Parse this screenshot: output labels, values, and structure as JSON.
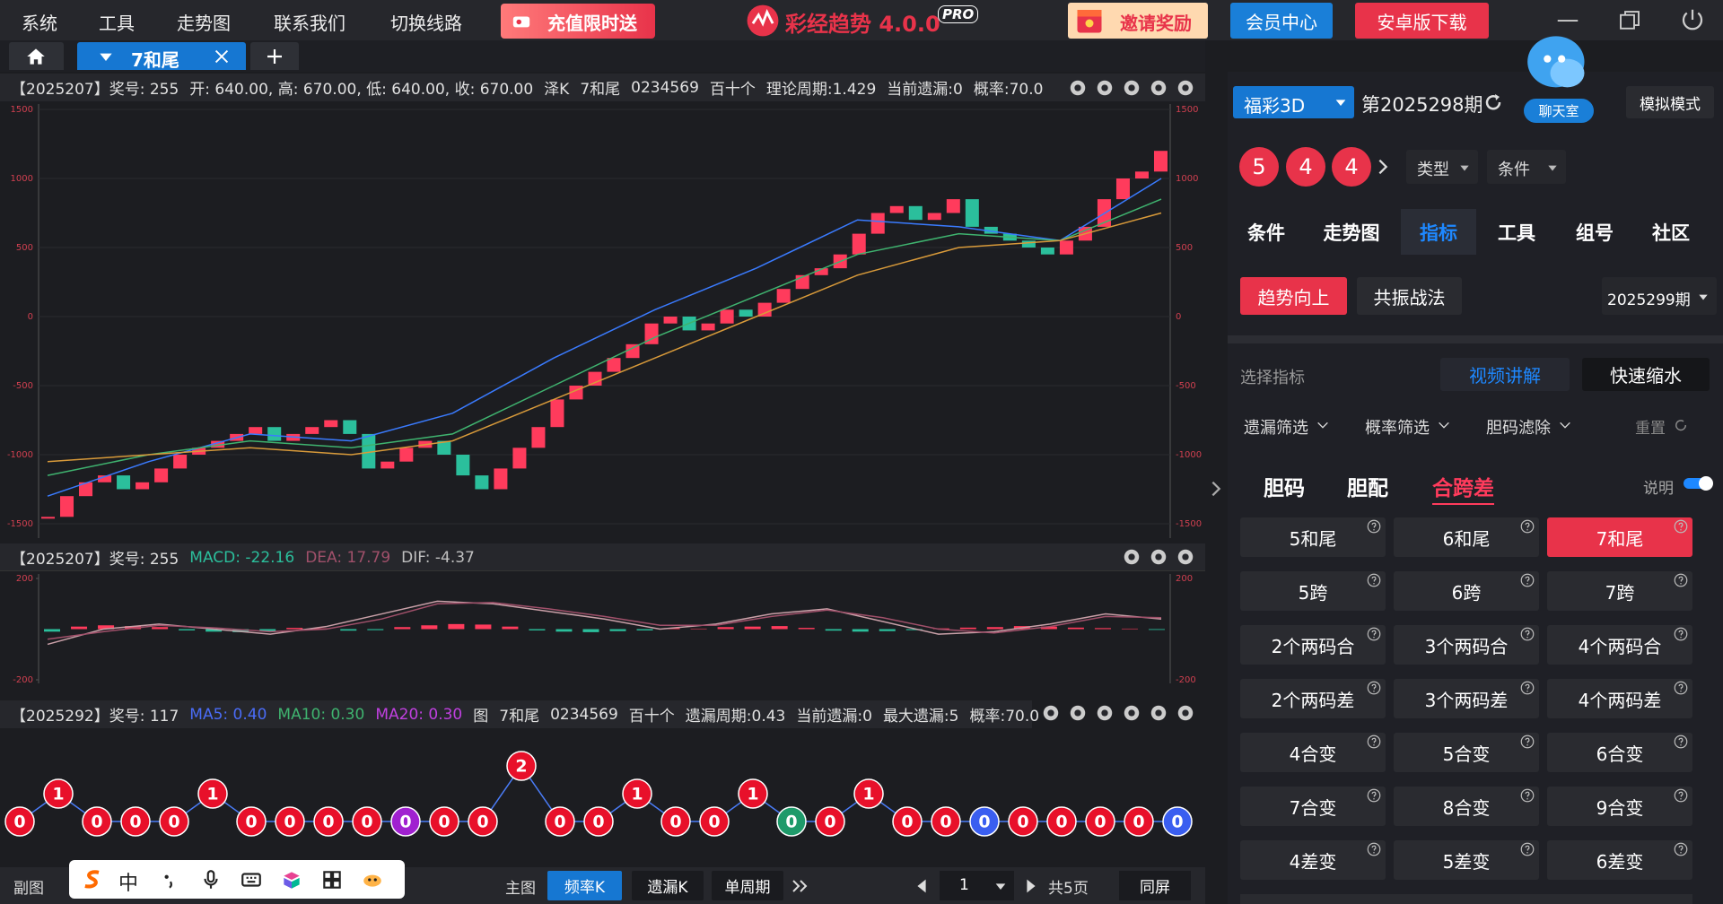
{
  "menu": {
    "items": [
      "系统",
      "工具",
      "走势图",
      "联系我们",
      "切换线路"
    ],
    "promo": "充值限时送",
    "app_name": "彩经趋势 4.0.0",
    "badge": "PRO",
    "invite": "邀请奖励",
    "member": "会员中心",
    "download": "安卓版下载"
  },
  "tabs": {
    "active": "7和尾"
  },
  "chart_data": [
    {
      "type": "candlestick",
      "header": {
        "period": "【2025207】奖号: 255",
        "ohlc": "开: 640.00, 高: 670.00, 低: 640.00, 收: 670.00",
        "items": [
          "泽K",
          "7和尾",
          "0234569",
          "百十个",
          "理论周期:1.429",
          "当前遗漏:0",
          "概率:70.0"
        ]
      },
      "values": [
        -1450,
        -1300,
        -1200,
        -1150,
        -1250,
        -1200,
        -1100,
        -1000,
        -950,
        -900,
        -850,
        -800,
        -900,
        -850,
        -800,
        -750,
        -850,
        -1100,
        -1050,
        -950,
        -900,
        -1000,
        -1150,
        -1250,
        -1100,
        -950,
        -800,
        -600,
        -500,
        -400,
        -300,
        -200,
        -50,
        0,
        -100,
        -50,
        50,
        0,
        100,
        200,
        300,
        350,
        450,
        600,
        750,
        800,
        700,
        750,
        850,
        650,
        600,
        550,
        500,
        450,
        550,
        650,
        850,
        1000,
        1050,
        1200
      ],
      "up_color": "#ff3b5c",
      "down_color": "#2bbf9c",
      "series": [
        {
          "color": "#3a7bff",
          "values": [
            -1300,
            -1050,
            -850,
            -900,
            -700,
            -300,
            50,
            350,
            700,
            650,
            550,
            1000
          ]
        },
        {
          "color": "#3fb36f",
          "values": [
            -1150,
            -1000,
            -900,
            -950,
            -850,
            -500,
            -150,
            150,
            450,
            600,
            550,
            850
          ]
        },
        {
          "color": "#d89a3a",
          "values": [
            -1050,
            -1000,
            -950,
            -1000,
            -900,
            -600,
            -300,
            0,
            300,
            500,
            550,
            750
          ]
        }
      ],
      "ylim": [
        -1500,
        1500
      ],
      "yticks": [
        1500,
        1000,
        500,
        0,
        -500,
        -1000,
        -1500
      ]
    },
    {
      "type": "macd",
      "header": {
        "period": "【2025207】奖号: 255",
        "macd": "MACD: -22.16",
        "dea": "DEA: 17.79",
        "dif": "DIF: -4.37"
      },
      "bars": [
        -10,
        10,
        15,
        12,
        8,
        -5,
        -10,
        -12,
        -8,
        5,
        3,
        -6,
        -4,
        8,
        15,
        20,
        18,
        10,
        -5,
        -10,
        -12,
        -8,
        -5,
        4,
        2,
        8,
        10,
        12,
        5,
        -6,
        -10,
        -8,
        -4,
        3,
        6,
        8,
        12,
        10,
        6,
        4,
        2,
        -3
      ],
      "up_color": "#ff3b5c",
      "down_color": "#2bbf9c",
      "series": [
        {
          "color": "#c9a0a8",
          "values": [
            -60,
            0,
            20,
            0,
            -20,
            10,
            60,
            110,
            100,
            70,
            40,
            0,
            20,
            60,
            80,
            30,
            -20,
            -10,
            20,
            60,
            40
          ]
        },
        {
          "color": "#a0506a",
          "values": [
            -40,
            -10,
            15,
            5,
            -10,
            0,
            40,
            100,
            105,
            80,
            50,
            15,
            15,
            50,
            75,
            45,
            0,
            -15,
            10,
            50,
            45
          ]
        }
      ],
      "ylim": [
        -200,
        200
      ],
      "yticks": [
        200,
        -200
      ]
    },
    {
      "type": "omission-dots",
      "header": {
        "period": "【2025292】奖号: 117",
        "ma5": "MA5: 0.40",
        "ma10": "MA10: 0.30",
        "ma20": "MA20: 0.30",
        "items": [
          "图",
          "7和尾",
          "0234569",
          "百十个",
          "遗漏周期:0.43",
          "当前遗漏:0",
          "最大遗漏:5",
          "概率:70.0"
        ]
      },
      "values": [
        0,
        1,
        0,
        0,
        0,
        1,
        0,
        0,
        0,
        0,
        0,
        0,
        0,
        2,
        0,
        0,
        1,
        0,
        0,
        1,
        0,
        0,
        1,
        0,
        0,
        0,
        0,
        0,
        0,
        0,
        0
      ],
      "colors": [
        "#e8102a",
        "#e8102a",
        "#e8102a",
        "#e8102a",
        "#e8102a",
        "#e8102a",
        "#e8102a",
        "#e8102a",
        "#e8102a",
        "#e8102a",
        "#a020d0",
        "#e8102a",
        "#e8102a",
        "#e8102a",
        "#e8102a",
        "#e8102a",
        "#e8102a",
        "#e8102a",
        "#e8102a",
        "#e8102a",
        "#1e9a6a",
        "#e8102a",
        "#e8102a",
        "#e8102a",
        "#e8102a",
        "#3a5ef0",
        "#e8102a",
        "#e8102a",
        "#e8102a",
        "#e8102a",
        "#3a5ef0"
      ],
      "line_color": "#4a7cf7"
    }
  ],
  "bottom": {
    "sub": "副图",
    "ime": "中",
    "main": "主图",
    "buttons": [
      "频率K",
      "遗漏K",
      "单周期"
    ],
    "page": "1",
    "pages": "共5页",
    "same": "同屏"
  },
  "side": {
    "lottery": "福彩3D",
    "issue": "第2025298期",
    "chat": "聊天室",
    "mode": "模拟模式",
    "balls": [
      "5",
      "4",
      "4"
    ],
    "type": "类型",
    "cond": "条件",
    "tabs": [
      "条件",
      "走势图",
      "指标",
      "工具",
      "组号",
      "社区"
    ],
    "trend": "趋势向上",
    "resonance": "共振战法",
    "next": "2025299期",
    "select": "选择指标",
    "video": "视频讲解",
    "shrink": "快速缩水",
    "filters": [
      "遗漏筛选",
      "概率筛选",
      "胆码滤除"
    ],
    "reset": "重置",
    "subtabs": [
      "胆码",
      "胆配",
      "合跨差"
    ],
    "explain": "说明",
    "indicators": [
      "5和尾",
      "6和尾",
      "7和尾",
      "5跨",
      "6跨",
      "7跨",
      "2个两码合",
      "3个两码合",
      "4个两码合",
      "2个两码差",
      "3个两码差",
      "4个两码差",
      "4合变",
      "5合变",
      "6合变",
      "7合变",
      "8合变",
      "9合变",
      "4差变",
      "5差变",
      "6差变"
    ]
  }
}
